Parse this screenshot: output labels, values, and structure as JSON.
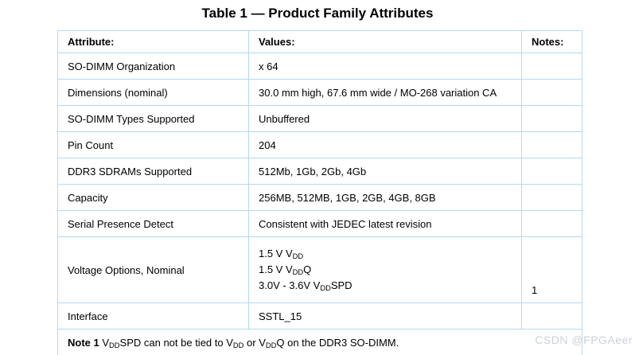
{
  "page": {
    "title": "Table 1 — Product Family Attributes",
    "watermark": "CSDN @FPGAeer"
  },
  "colors": {
    "table_border": "#b3daf2",
    "text": "#000000",
    "watermark": "#ccd3db",
    "background": "#ffffff"
  },
  "table": {
    "headers": [
      "Attribute:",
      "Values:",
      "Notes:"
    ],
    "rows": [
      {
        "attribute": "SO-DIMM Organization",
        "value": "x 64",
        "note": ""
      },
      {
        "attribute": "Dimensions (nominal)",
        "value": "30.0 mm high, 67.6 mm wide / MO-268 variation CA",
        "note": ""
      },
      {
        "attribute": "SO-DIMM Types Supported",
        "value": "Unbuffered",
        "note": ""
      },
      {
        "attribute": "Pin Count",
        "value": "204",
        "note": ""
      },
      {
        "attribute": "DDR3 SDRAMs Supported",
        "value": "512Mb, 1Gb, 2Gb, 4Gb",
        "note": ""
      },
      {
        "attribute": "Capacity",
        "value": "256MB, 512MB, 1GB, 2GB, 4GB, 8GB",
        "note": ""
      },
      {
        "attribute": "Serial Presence Detect",
        "value": "Consistent with JEDEC latest revision",
        "note": ""
      },
      {
        "attribute": "Voltage Options, Nominal",
        "value_lines": [
          "1.5 V V~DD~",
          "1.5 V V~DD~Q",
          "3.0V - 3.6V V~DD~SPD"
        ],
        "note": "1"
      },
      {
        "attribute": "Interface",
        "value": "SSTL_15",
        "note": ""
      }
    ],
    "footnote": {
      "label": "Note 1",
      "text": " V~DD~SPD can not be tied to V~DD~ or V~DD~Q on the DDR3 SO-DIMM."
    }
  }
}
